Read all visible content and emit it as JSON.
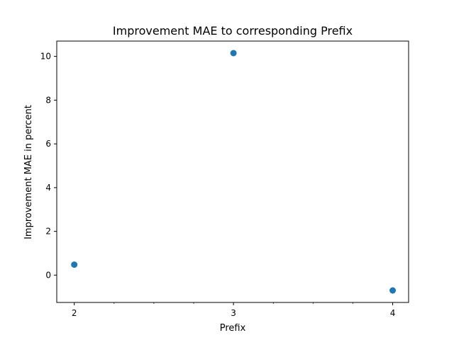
{
  "chart_data": {
    "type": "scatter",
    "title": "Improvement MAE to corresponding Prefix",
    "xlabel": "Prefix",
    "ylabel": "Improvement MAE in percent",
    "x": [
      2,
      3,
      4
    ],
    "y": [
      0.48,
      10.15,
      -0.7
    ],
    "xlim": [
      1.89,
      4.1
    ],
    "ylim": [
      -1.25,
      10.7
    ],
    "xticks": [
      2,
      3,
      4
    ],
    "yticks": [
      0,
      2,
      4,
      6,
      8,
      10
    ],
    "marker_color": "#1f77b4",
    "grid": false
  }
}
